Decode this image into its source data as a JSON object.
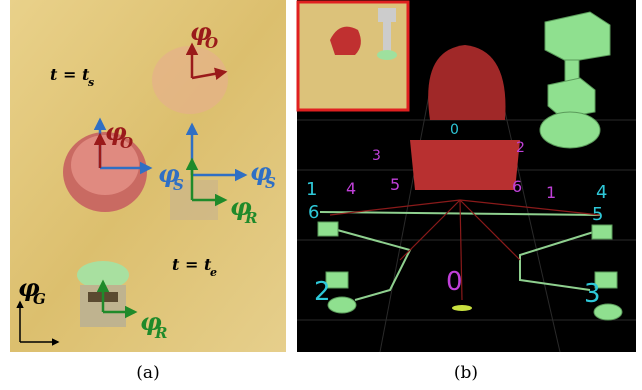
{
  "panel_a": {
    "caption": "(a)",
    "time_labels": [
      "t = t",
      "s",
      "t = t",
      "e"
    ],
    "frames": [
      {
        "symbol": "φ",
        "sub": "O"
      },
      {
        "symbol": "φ",
        "sub": "O"
      },
      {
        "symbol": "φ",
        "sub": "S"
      },
      {
        "symbol": "φ",
        "sub": "S"
      },
      {
        "symbol": "φ",
        "sub": "R"
      },
      {
        "symbol": "φ",
        "sub": "R"
      },
      {
        "symbol": "φ",
        "sub": "G"
      }
    ]
  },
  "panel_b": {
    "caption": "(b)",
    "cyan_labels": [
      "0",
      "1",
      "6",
      "5",
      "4",
      "2",
      "3"
    ],
    "magenta_labels": [
      "3",
      "2",
      "4",
      "5",
      "6",
      "1",
      "0"
    ]
  }
}
